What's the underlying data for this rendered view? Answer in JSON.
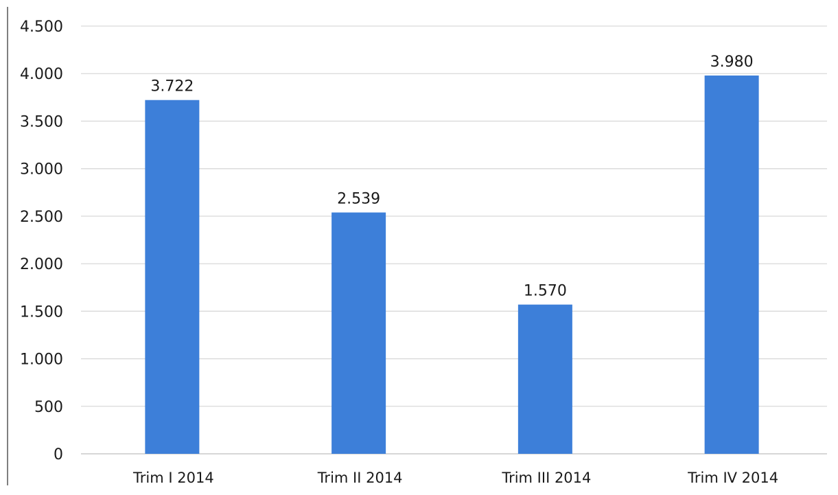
{
  "chart_data": {
    "type": "bar",
    "categories": [
      "Trim I 2014",
      "Trim II 2014",
      "Trim III 2014",
      "Trim IV 2014"
    ],
    "values": [
      3722,
      2539,
      1570,
      3980
    ],
    "data_labels": [
      "3.722",
      "2.539",
      "1.570",
      "3.980"
    ],
    "title": "",
    "xlabel": "",
    "ylabel": "",
    "ylim": [
      0,
      4500
    ],
    "yticks": [
      0,
      500,
      1000,
      1500,
      2000,
      2500,
      3000,
      3500,
      4000,
      4500
    ],
    "ytick_labels": [
      "0",
      "500",
      "1.000",
      "1.500",
      "2.000",
      "2.500",
      "3.000",
      "3.500",
      "4.000",
      "4.500"
    ],
    "grid": true,
    "legend": "none",
    "colors": {
      "bar": "#3d7fd9",
      "grid": "#d9d9d9",
      "axis": "#bfbfbf",
      "text": "#1a1a1a"
    }
  }
}
